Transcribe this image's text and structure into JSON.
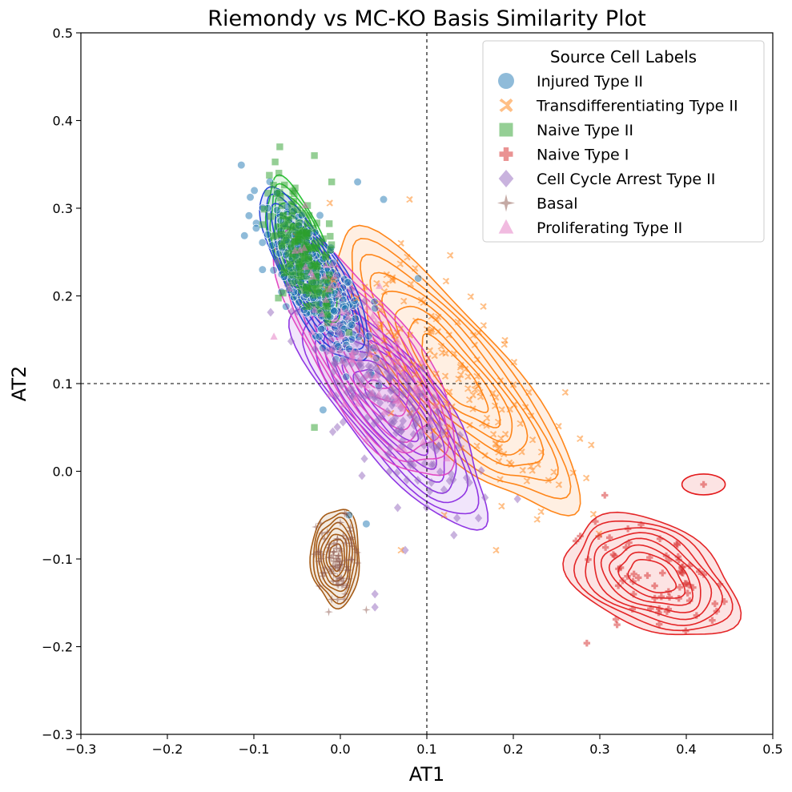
{
  "chart_data": {
    "type": "scatter",
    "title": "Riemondy vs MC-KO Basis Similarity Plot",
    "xlabel": "AT1",
    "ylabel": "AT2",
    "xlim": [
      -0.3,
      0.5
    ],
    "ylim": [
      -0.3,
      0.5
    ],
    "x_ticks": [
      "−0.3",
      "−0.2",
      "−0.1",
      "0.0",
      "0.1",
      "0.2",
      "0.3",
      "0.4",
      "0.5"
    ],
    "y_ticks": [
      "−0.3",
      "−0.2",
      "−0.1",
      "0.0",
      "0.1",
      "0.2",
      "0.3",
      "0.4",
      "0.5"
    ],
    "grid": false,
    "reference_lines": {
      "x": 0.1,
      "y": 0.1,
      "style": "dashed"
    },
    "legend": {
      "title": "Source Cell Labels",
      "placement": "top-right"
    },
    "series": [
      {
        "name": "Injured Type II",
        "marker": "circle",
        "color": "#1f77b4",
        "contour_color": "#1f3fd9",
        "center": [
          -0.03,
          0.22
        ],
        "cov": [
          [
            0.0009,
            -0.0011
          ],
          [
            -0.0011,
            0.0022
          ]
        ],
        "n": 260,
        "seed": 11,
        "outliers": [
          [
            0.05,
            0.31
          ],
          [
            0.02,
            0.33
          ],
          [
            0.01,
            -0.05
          ],
          [
            -0.09,
            0.23
          ],
          [
            0.03,
            -0.06
          ],
          [
            -0.02,
            0.07
          ],
          [
            0.09,
            0.22
          ]
        ]
      },
      {
        "name": "Transdifferentiating Type II",
        "marker": "x",
        "color": "#ff7f0e",
        "contour_color": "#ff7f0e",
        "center": [
          0.13,
          0.11
        ],
        "cov": [
          [
            0.0045,
            -0.0042
          ],
          [
            -0.0042,
            0.0058
          ]
        ],
        "n": 150,
        "seed": 23,
        "outliers": [
          [
            0.08,
            0.31
          ],
          [
            0.07,
            0.26
          ],
          [
            0.12,
            -0.05
          ],
          [
            0.18,
            -0.09
          ],
          [
            0.07,
            -0.09
          ],
          [
            0.29,
            0.03
          ],
          [
            0.26,
            0.09
          ]
        ]
      },
      {
        "name": "Naive Type II",
        "marker": "square",
        "color": "#2ca02c",
        "contour_color": "#22c02c",
        "center": [
          -0.045,
          0.25
        ],
        "cov": [
          [
            0.0004,
            -0.0005
          ],
          [
            -0.0005,
            0.0015
          ]
        ],
        "n": 170,
        "seed": 31,
        "outliers": [
          [
            -0.07,
            0.37
          ],
          [
            -0.03,
            0.05
          ],
          [
            -0.01,
            0.33
          ],
          [
            -0.03,
            0.36
          ]
        ]
      },
      {
        "name": "Naive Type I",
        "marker": "plus",
        "color": "#d62728",
        "contour_color": "#e31a1c",
        "center": [
          0.36,
          -0.12
        ],
        "cov": [
          [
            0.0022,
            -0.0006
          ],
          [
            -0.0006,
            0.0011
          ]
        ],
        "n": 70,
        "seed": 47,
        "outliers": [
          [
            0.42,
            -0.015
          ],
          [
            0.32,
            -0.175
          ],
          [
            0.43,
            -0.17
          ]
        ]
      },
      {
        "name": "Cell Cycle Arrest Type II",
        "marker": "diamond",
        "color": "#9467bd",
        "contour_color": "#8a2be2",
        "center": [
          0.06,
          0.07
        ],
        "cov": [
          [
            0.0028,
            -0.0026
          ],
          [
            -0.0026,
            0.0038
          ]
        ],
        "n": 170,
        "seed": 53,
        "outliers": [
          [
            0.04,
            -0.14
          ],
          [
            0.04,
            -0.155
          ],
          [
            0.075,
            -0.09
          ],
          [
            0.025,
            -0.005
          ]
        ]
      },
      {
        "name": "Basal",
        "marker": "star",
        "color": "#8c564b",
        "contour_color": "#a0520a",
        "center": [
          -0.005,
          -0.098
        ],
        "cov": [
          [
            0.00018,
            0.0
          ],
          [
            0.0,
            0.0007
          ]
        ],
        "n": 90,
        "seed": 61,
        "outliers": [
          [
            0.03,
            -0.158
          ],
          [
            0.005,
            -0.048
          ]
        ]
      },
      {
        "name": "Proliferating Type II",
        "marker": "triangle",
        "color": "#e377c2",
        "contour_color": "#e040c0",
        "center": [
          0.03,
          0.13
        ],
        "cov": [
          [
            0.0025,
            -0.0026
          ],
          [
            -0.0026,
            0.0045
          ]
        ],
        "n": 90,
        "seed": 71,
        "outliers": []
      }
    ]
  }
}
